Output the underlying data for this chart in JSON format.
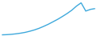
{
  "x": [
    0,
    1,
    2,
    3,
    4,
    5,
    6,
    7,
    8,
    9,
    10,
    11,
    12,
    13,
    14,
    15,
    16,
    17,
    18,
    19,
    20
  ],
  "y": [
    1.0,
    1.1,
    1.3,
    1.6,
    2.0,
    2.5,
    3.2,
    4.0,
    5.0,
    6.2,
    7.5,
    9.0,
    10.5,
    12.2,
    14.0,
    16.0,
    18.5,
    20.5,
    15.5,
    16.5,
    17.0
  ],
  "line_color": "#3fa9dc",
  "line_width": 1.0,
  "background_color": "#ffffff",
  "ylim": [
    0.5,
    22
  ],
  "xlim": [
    -0.2,
    20.2
  ]
}
